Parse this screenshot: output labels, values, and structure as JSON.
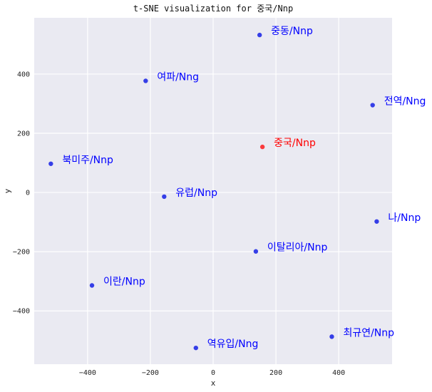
{
  "chart_data": {
    "type": "scatter",
    "title": "t-SNE visualization for 중국/Nnp",
    "xlabel": "x",
    "ylabel": "y",
    "xlim": [
      -570,
      570
    ],
    "ylim": [
      -580,
      590
    ],
    "xticks": [
      -400,
      -200,
      0,
      200,
      400
    ],
    "yticks": [
      -400,
      -200,
      0,
      200,
      400
    ],
    "grid": true,
    "background_color": "#eaeaf2",
    "grid_color": "#ffffff",
    "point_color": "#2b35e6",
    "label_color": "#0000ff",
    "highlight_color": "#ff0000",
    "points": [
      {
        "label": "중동/Nnp",
        "x": 148,
        "y": 532,
        "highlight": false
      },
      {
        "label": "여파/Nng",
        "x": -215,
        "y": 377,
        "highlight": false
      },
      {
        "label": "전역/Nng",
        "x": 508,
        "y": 295,
        "highlight": false
      },
      {
        "label": "중국/Nnp",
        "x": 157,
        "y": 154,
        "highlight": true
      },
      {
        "label": "북미주/Nnp",
        "x": -517,
        "y": 97,
        "highlight": false
      },
      {
        "label": "유럽/Nnp",
        "x": -156,
        "y": -14,
        "highlight": false
      },
      {
        "label": "나/Nnp",
        "x": 521,
        "y": -98,
        "highlight": false
      },
      {
        "label": "이탈리아/Nnp",
        "x": 136,
        "y": -199,
        "highlight": false
      },
      {
        "label": "이란/Nnp",
        "x": -386,
        "y": -314,
        "highlight": false
      },
      {
        "label": "최규연/Nnp",
        "x": 378,
        "y": -487,
        "highlight": false
      },
      {
        "label": "역유입/Nng",
        "x": -55,
        "y": -525,
        "highlight": false
      }
    ]
  }
}
